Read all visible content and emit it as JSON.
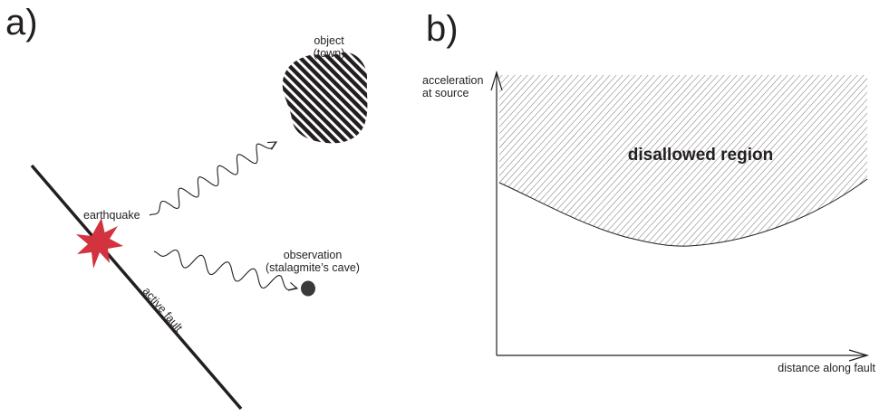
{
  "panel_a": {
    "letter": "a)",
    "object_label": [
      "object",
      "(town)"
    ],
    "earthquake_label": "earthquake",
    "observation_label": [
      "observation",
      "(stalagmite’s cave)"
    ],
    "fault_label": "active fault",
    "colors": {
      "earthquake": "#d2333f",
      "line": "#231f20",
      "cave": "#3a3a3c"
    }
  },
  "panel_b": {
    "letter": "b)",
    "y_axis_label": [
      "acceleration",
      "at source"
    ],
    "x_axis_label": "distance along fault",
    "region_label": "disallowed region"
  }
}
